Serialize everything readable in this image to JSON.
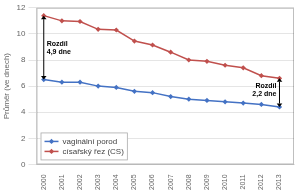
{
  "chart_data": {
    "type": "line",
    "x": [
      2000,
      2001,
      2002,
      2003,
      2004,
      2005,
      2006,
      2007,
      2008,
      2009,
      2010,
      2011,
      2012,
      2013
    ],
    "series": [
      {
        "name": "vaginální porod",
        "color": "#4472c4",
        "values": [
          6.5,
          6.3,
          6.3,
          6.0,
          5.9,
          5.6,
          5.5,
          5.2,
          5.0,
          4.9,
          4.8,
          4.7,
          4.6,
          4.4
        ]
      },
      {
        "name": "císařský řez (CS)",
        "color": "#c0504d",
        "values": [
          11.4,
          11.0,
          10.95,
          10.35,
          10.3,
          9.45,
          9.15,
          8.6,
          8.0,
          7.9,
          7.6,
          7.4,
          6.8,
          6.6
        ]
      }
    ],
    "ylabel": "Průměr (ve dnech)",
    "xlim": [
      1999.6,
      2013.8
    ],
    "xticks": [
      2000,
      2001,
      2002,
      2003,
      2004,
      2005,
      2006,
      2007,
      2008,
      2009,
      2010,
      2011,
      2012,
      2013
    ],
    "ylim": [
      0,
      12
    ],
    "yticks": [
      0,
      2,
      4,
      6,
      8,
      10,
      12
    ],
    "grid": true,
    "legend": "lower left",
    "marker": "diamond",
    "line_style": "solid",
    "annotations": [
      {
        "text": "Rozdíl\n4,9 dne",
        "x": 2000,
        "y_top": 11.4,
        "y_bottom": 6.5
      },
      {
        "text": "Rozdíl\n2,2 dne",
        "x": 2013,
        "y_top": 6.6,
        "y_bottom": 4.4
      }
    ]
  }
}
